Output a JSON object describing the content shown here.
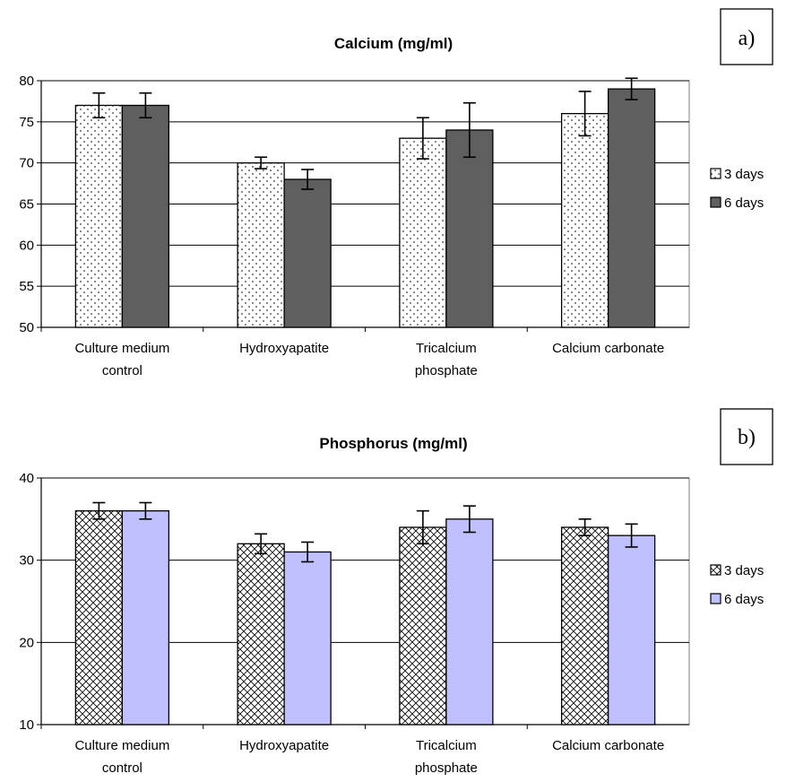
{
  "chart_data": [
    {
      "type": "bar",
      "panel_label": "a)",
      "title": "Calcium (mg/ml)",
      "categories": [
        [
          "Culture medium",
          "control"
        ],
        [
          "Hydroxyapatite"
        ],
        [
          "Tricalcium",
          "phosphate"
        ],
        [
          "Calcium carbonate"
        ]
      ],
      "series": [
        {
          "name": "3 days",
          "values": [
            77,
            70,
            73,
            76
          ],
          "errors": [
            1.5,
            0.7,
            2.5,
            2.7
          ],
          "fill": "dots",
          "color": "#ffffff"
        },
        {
          "name": "6 days",
          "values": [
            77,
            68,
            74,
            79
          ],
          "errors": [
            1.5,
            1.2,
            3.3,
            1.3
          ],
          "fill": "solid",
          "color": "#5f5f5f"
        }
      ],
      "ylim": [
        50,
        80
      ],
      "yticks": [
        50,
        55,
        60,
        65,
        70,
        75,
        80
      ],
      "grid": true,
      "legend": "right"
    },
    {
      "type": "bar",
      "panel_label": "b)",
      "title": "Phosphorus (mg/ml)",
      "categories": [
        [
          "Culture medium",
          "control"
        ],
        [
          "Hydroxyapatite"
        ],
        [
          "Tricalcium",
          "phosphate"
        ],
        [
          "Calcium carbonate"
        ]
      ],
      "series": [
        {
          "name": "3 days",
          "values": [
            36,
            32,
            34,
            34
          ],
          "errors": [
            1.0,
            1.2,
            2.0,
            1.0
          ],
          "fill": "crosshatch",
          "color": "#ffffff"
        },
        {
          "name": "6 days",
          "values": [
            36,
            31,
            35,
            33
          ],
          "errors": [
            1.0,
            1.2,
            1.6,
            1.4
          ],
          "fill": "solid",
          "color": "#c0c0ff"
        }
      ],
      "ylim": [
        10,
        40
      ],
      "yticks": [
        10,
        20,
        30,
        40
      ],
      "grid": true,
      "legend": "right"
    }
  ]
}
